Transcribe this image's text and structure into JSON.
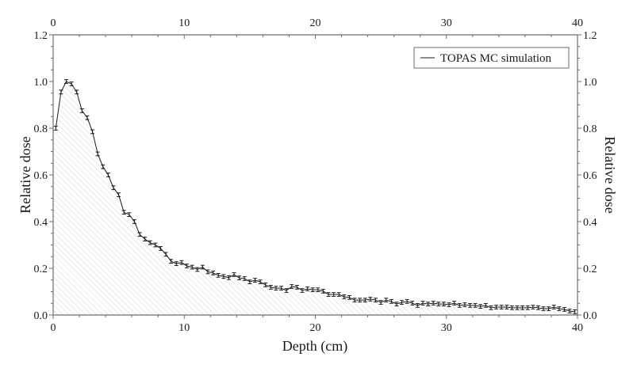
{
  "chart_data": {
    "type": "area",
    "title": "",
    "xlabel": "Depth (cm)",
    "ylabel": "Relative dose",
    "ylabel_right": "Relative dose",
    "xlim": [
      0,
      40
    ],
    "ylim": [
      0.0,
      1.2
    ],
    "x_ticks": [
      0,
      10,
      20,
      30,
      40
    ],
    "y_ticks": [
      "0.0",
      "0.2",
      "0.4",
      "0.6",
      "0.8",
      "1.0",
      "1.2"
    ],
    "grid": false,
    "legend_position": "top-right",
    "fill": "diagonal-hatch",
    "error_bars": true,
    "series": [
      {
        "name": "TOPAS MC simulation",
        "color": "#1a1a1a",
        "x": [
          0.2,
          0.6,
          1.0,
          1.4,
          1.8,
          2.2,
          2.6,
          3.0,
          3.4,
          3.8,
          4.2,
          4.6,
          5.0,
          5.4,
          5.8,
          6.2,
          6.6,
          7.0,
          7.4,
          7.8,
          8.2,
          8.6,
          9.0,
          9.4,
          9.8,
          10.2,
          10.6,
          11.0,
          11.4,
          11.8,
          12.2,
          12.6,
          13.0,
          13.4,
          13.8,
          14.2,
          14.6,
          15.0,
          15.4,
          15.8,
          16.2,
          16.6,
          17.0,
          17.4,
          17.8,
          18.2,
          18.6,
          19.0,
          19.4,
          19.8,
          20.2,
          20.6,
          21.0,
          21.4,
          21.8,
          22.2,
          22.6,
          23.0,
          23.4,
          23.8,
          24.2,
          24.6,
          25.0,
          25.4,
          25.8,
          26.2,
          26.6,
          27.0,
          27.4,
          27.8,
          28.2,
          28.6,
          29.0,
          29.4,
          29.8,
          30.2,
          30.6,
          31.0,
          31.4,
          31.8,
          32.2,
          32.6,
          33.0,
          33.4,
          33.8,
          34.2,
          34.6,
          35.0,
          35.4,
          35.8,
          36.2,
          36.6,
          37.0,
          37.4,
          37.8,
          38.2,
          38.6,
          39.0,
          39.4,
          39.8
        ],
        "values": [
          0.8,
          0.955,
          1.0,
          0.99,
          0.955,
          0.875,
          0.845,
          0.785,
          0.69,
          0.635,
          0.6,
          0.545,
          0.515,
          0.44,
          0.43,
          0.4,
          0.345,
          0.325,
          0.31,
          0.3,
          0.285,
          0.26,
          0.23,
          0.22,
          0.225,
          0.21,
          0.205,
          0.195,
          0.205,
          0.185,
          0.18,
          0.17,
          0.165,
          0.16,
          0.173,
          0.159,
          0.156,
          0.142,
          0.149,
          0.142,
          0.129,
          0.119,
          0.115,
          0.115,
          0.105,
          0.122,
          0.119,
          0.105,
          0.112,
          0.108,
          0.108,
          0.102,
          0.088,
          0.088,
          0.088,
          0.078,
          0.075,
          0.064,
          0.064,
          0.064,
          0.068,
          0.064,
          0.054,
          0.064,
          0.058,
          0.047,
          0.054,
          0.058,
          0.051,
          0.041,
          0.051,
          0.047,
          0.051,
          0.047,
          0.047,
          0.044,
          0.051,
          0.041,
          0.044,
          0.041,
          0.041,
          0.037,
          0.041,
          0.031,
          0.034,
          0.034,
          0.034,
          0.031,
          0.031,
          0.031,
          0.031,
          0.034,
          0.031,
          0.027,
          0.027,
          0.034,
          0.027,
          0.024,
          0.017,
          0.014
        ],
        "error": 0.008
      }
    ]
  },
  "colors": {
    "axis": "#6e6e6e",
    "line": "#1a1a1a",
    "hatch": "#d4d4d4",
    "legend_border": "#6e6e6e"
  }
}
